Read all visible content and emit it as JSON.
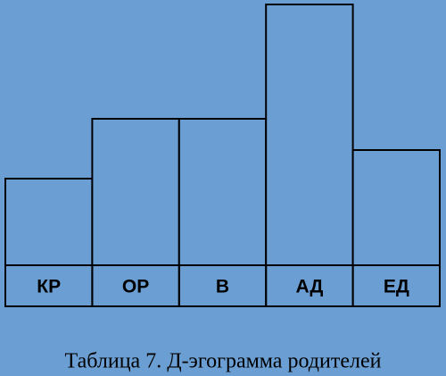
{
  "chart_data": {
    "type": "bar",
    "title": "Таблица 7. Д-эгограмма родителей",
    "categories": [
      "КР",
      "ОР",
      "В",
      "АД",
      "ЕД"
    ],
    "values": [
      97,
      164,
      164,
      292,
      129
    ],
    "ylim": [
      0,
      292
    ],
    "color": "#6b9fd3"
  }
}
